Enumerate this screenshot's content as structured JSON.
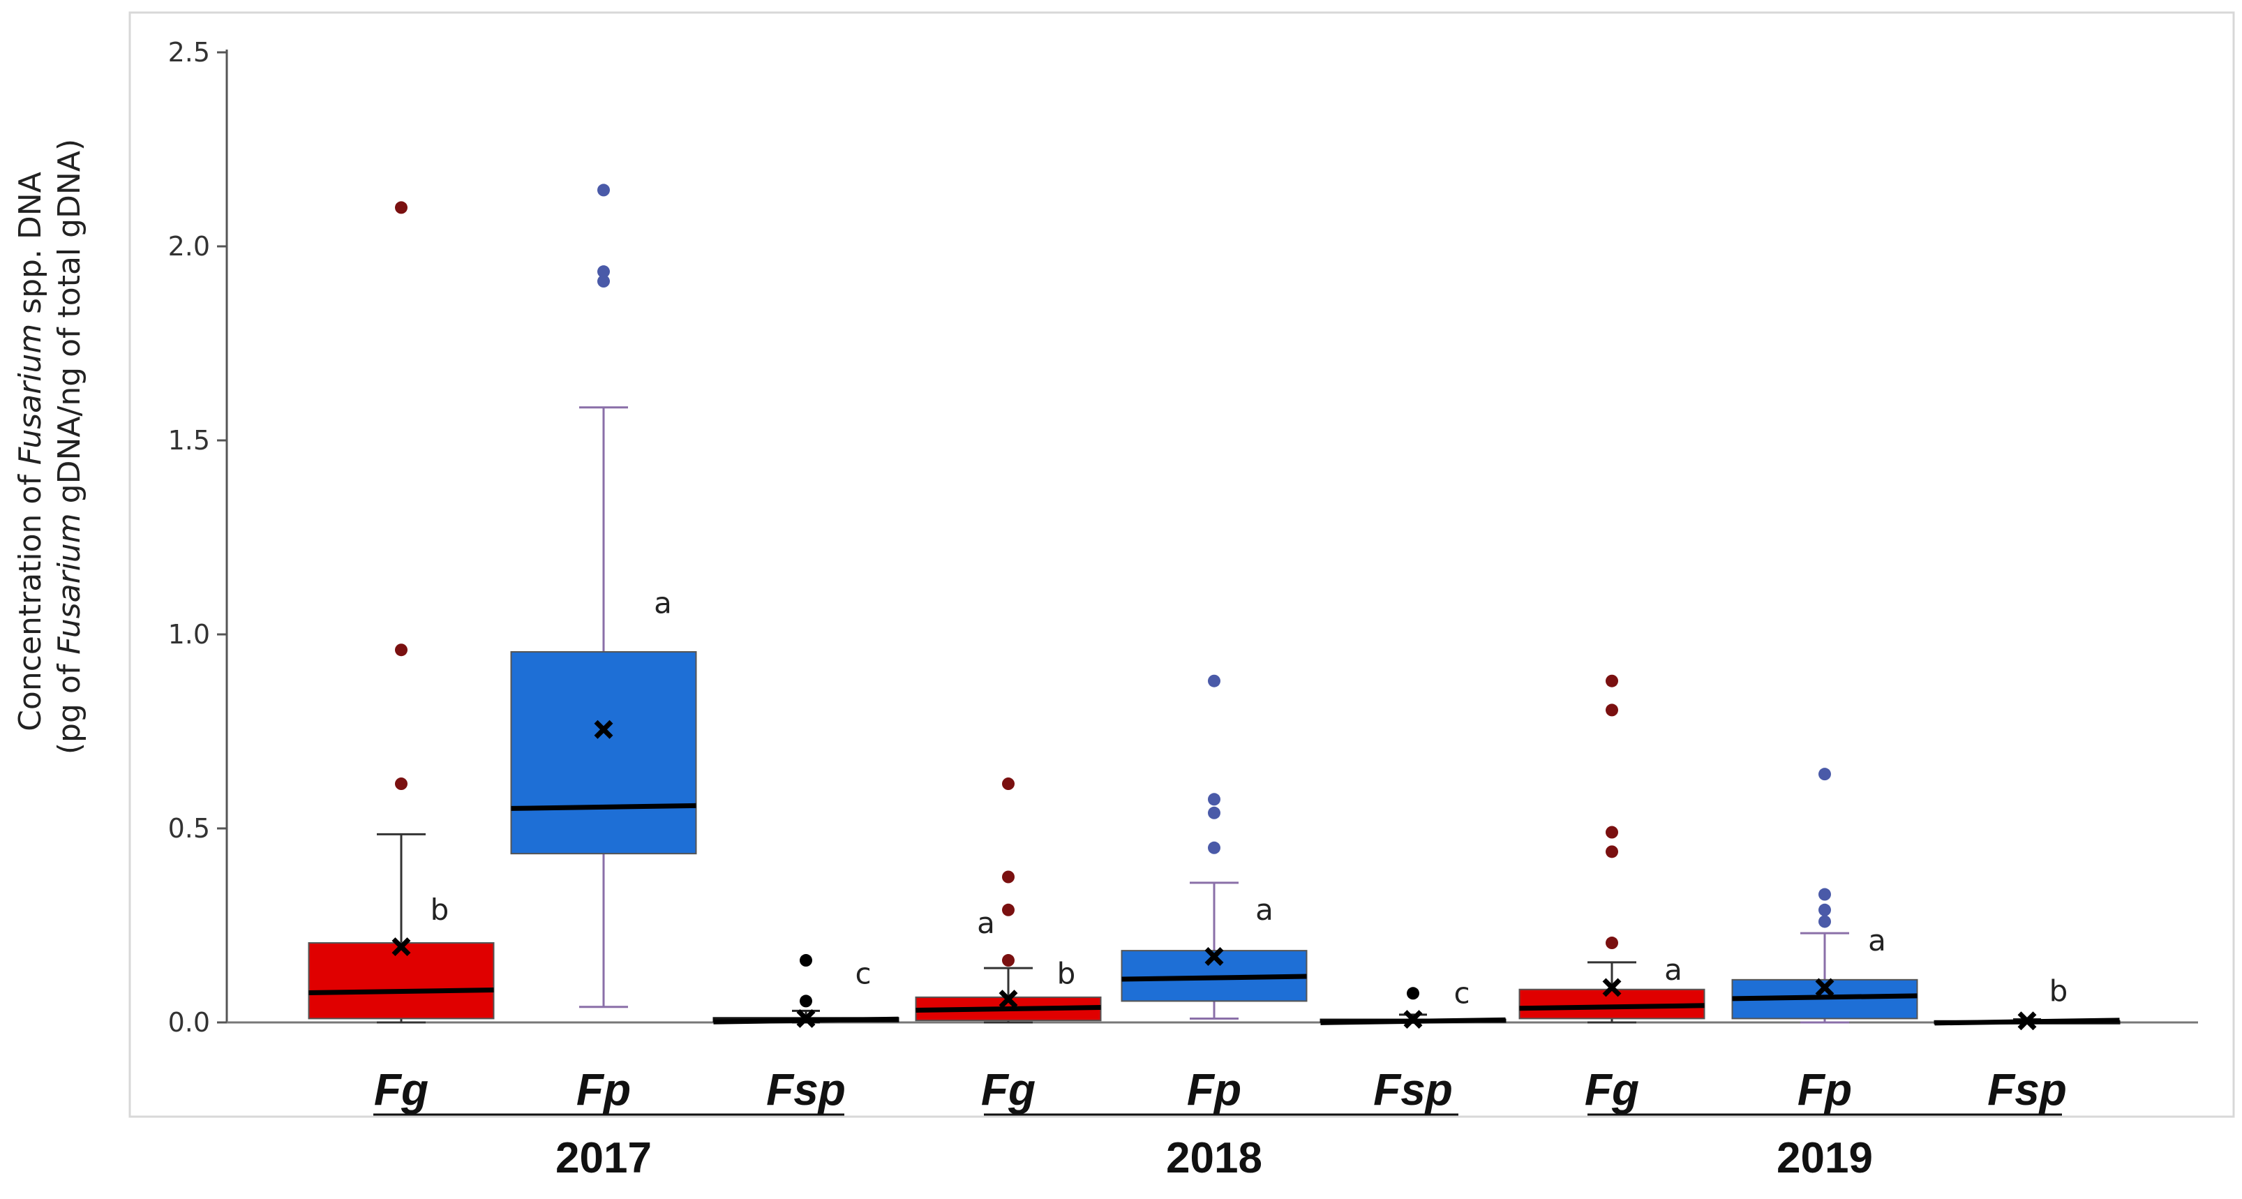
{
  "chart_data": {
    "type": "box",
    "title": "",
    "ylabel_line1_prefix": "Concentration of ",
    "ylabel_line1_italic": "Fusarium",
    "ylabel_line1_suffix": " spp. DNA",
    "ylabel_line2_prefix": "(pg of ",
    "ylabel_line2_italic": "Fusarium",
    "ylabel_line2_suffix": " gDNA/ng of total gDNA)",
    "ylim": [
      0,
      2.5
    ],
    "yticks": [
      "0.0",
      "0.5",
      "1.0",
      "1.5",
      "2.0",
      "2.5"
    ],
    "ytick_values": [
      0,
      0.5,
      1.0,
      1.5,
      2.0,
      2.5
    ],
    "groups": [
      {
        "year": "2017",
        "boxes": [
          {
            "category": "Fg",
            "color": "#e00000",
            "outlier_color": "#7a1010",
            "q1": 0.01,
            "median": 0.08,
            "q3": 0.205,
            "whisker_low": 0.0,
            "whisker_high": 0.485,
            "mean": 0.195,
            "outliers": [
              0.615,
              0.96,
              2.1
            ],
            "letter": "b"
          },
          {
            "category": "Fp",
            "color": "#1e6fd6",
            "outlier_color": "#4a5aa8",
            "q1": 0.435,
            "median": 0.555,
            "q3": 0.955,
            "whisker_low": 0.04,
            "whisker_high": 1.585,
            "mean": 0.755,
            "outliers": [
              1.91,
              1.935,
              2.145
            ],
            "letter": "a"
          },
          {
            "category": "Fsp",
            "color": "#1a1a1a",
            "outlier_color": "#000000",
            "q1": 0.002,
            "median": 0.005,
            "q3": 0.012,
            "whisker_low": 0.0,
            "whisker_high": 0.03,
            "mean": 0.01,
            "outliers": [
              0.055,
              0.16
            ],
            "letter": "c"
          }
        ]
      },
      {
        "year": "2018",
        "boxes": [
          {
            "category": "Fg",
            "color": "#e00000",
            "outlier_color": "#7a1010",
            "q1": 0.005,
            "median": 0.035,
            "q3": 0.065,
            "whisker_low": 0.0,
            "whisker_high": 0.14,
            "mean": 0.06,
            "outliers": [
              0.16,
              0.29,
              0.375,
              0.615
            ],
            "letter": "b",
            "letter2": "a"
          },
          {
            "category": "Fp",
            "color": "#1e6fd6",
            "outlier_color": "#4a5aa8",
            "q1": 0.055,
            "median": 0.115,
            "q3": 0.185,
            "whisker_low": 0.01,
            "whisker_high": 0.36,
            "mean": 0.17,
            "outliers": [
              0.45,
              0.54,
              0.575,
              0.88
            ],
            "letter": "a"
          },
          {
            "category": "Fsp",
            "color": "#1a1a1a",
            "outlier_color": "#000000",
            "q1": 0.001,
            "median": 0.003,
            "q3": 0.008,
            "whisker_low": 0.0,
            "whisker_high": 0.02,
            "mean": 0.008,
            "outliers": [
              0.075
            ],
            "letter": "c"
          }
        ]
      },
      {
        "year": "2019",
        "boxes": [
          {
            "category": "Fg",
            "color": "#e00000",
            "outlier_color": "#7a1010",
            "q1": 0.01,
            "median": 0.04,
            "q3": 0.085,
            "whisker_low": 0.0,
            "whisker_high": 0.155,
            "mean": 0.09,
            "outliers": [
              0.205,
              0.44,
              0.49,
              0.805,
              0.88
            ],
            "letter": "a"
          },
          {
            "category": "Fp",
            "color": "#1e6fd6",
            "outlier_color": "#4a5aa8",
            "q1": 0.01,
            "median": 0.065,
            "q3": 0.11,
            "whisker_low": 0.0,
            "whisker_high": 0.23,
            "mean": 0.09,
            "outliers": [
              0.26,
              0.29,
              0.33,
              0.64
            ],
            "letter": "a"
          },
          {
            "category": "Fsp",
            "color": "#1a1a1a",
            "outlier_color": "#000000",
            "q1": 0.001,
            "median": 0.002,
            "q3": 0.004,
            "whisker_low": 0.0,
            "whisker_high": 0.008,
            "mean": 0.004,
            "outliers": [],
            "letter": "b"
          }
        ]
      }
    ]
  }
}
